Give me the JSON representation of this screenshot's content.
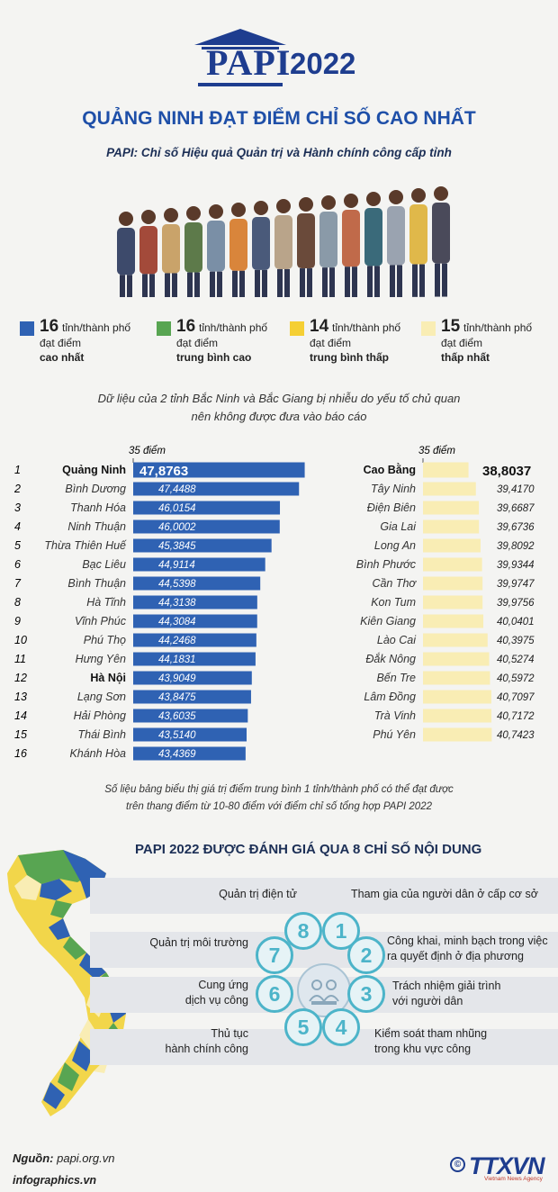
{
  "header": {
    "logo_text": "PAPI",
    "year": "2022",
    "title": "QUẢNG NINH ĐẠT ĐIỂM CHỈ SỐ CAO NHẤT",
    "subtitle": "PAPI: Chỉ số Hiệu quả Quản trị và Hành chính công cấp tỉnh"
  },
  "colors": {
    "brand": "#1e3d8f",
    "high": "#2f62b3",
    "medium_high": "#58a552",
    "medium_low": "#f5cf34",
    "low": "#f9edb4",
    "indicator": "#4cb4c9"
  },
  "legend": [
    {
      "count": "16",
      "unit": "tỉnh/thành phố",
      "line2": "đạt điểm",
      "line3": "cao nhất",
      "color": "#2f62b3"
    },
    {
      "count": "16",
      "unit": "tỉnh/thành phố",
      "line2": "đạt điểm",
      "line3": "trung bình cao",
      "color": "#58a552"
    },
    {
      "count": "14",
      "unit": "tỉnh/thành phố",
      "line2": "đạt điểm",
      "line3": "trung bình thấp",
      "color": "#f5cf34"
    },
    {
      "count": "15",
      "unit": "tỉnh/thành phố",
      "line2": "đạt điểm",
      "line3": "thấp nhất",
      "color": "#f9edb4"
    }
  ],
  "note_top": {
    "line1": "Dữ liệu của 2 tỉnh Bắc Ninh và Bắc Giang bị nhiễu do yếu tố chủ quan",
    "line2": "nên không được đưa vào báo cáo"
  },
  "chart_data": [
    {
      "type": "bar",
      "orientation": "horizontal",
      "axis_label": "35 điểm",
      "xlim_start": 35,
      "color": "#2f62b3",
      "ranks": [
        "1",
        "2",
        "3",
        "4",
        "5",
        "6",
        "7",
        "8",
        "9",
        "10",
        "11",
        "12",
        "13",
        "14",
        "15",
        "16"
      ],
      "categories": [
        "Quảng Ninh",
        "Bình Dương",
        "Thanh Hóa",
        "Ninh Thuận",
        "Thừa Thiên Huế",
        "Bạc Liêu",
        "Bình Thuận",
        "Hà Tĩnh",
        "Vĩnh Phúc",
        "Phú Thọ",
        "Hưng Yên",
        "Hà Nội",
        "Lạng Sơn",
        "Hải Phòng",
        "Thái Bình",
        "Khánh Hòa"
      ],
      "labels": [
        "47,8763",
        "47,4488",
        "46,0154",
        "46,0002",
        "45,3845",
        "44,9114",
        "44,5398",
        "44,3138",
        "44,3084",
        "44,2468",
        "44,1831",
        "43,9049",
        "43,8475",
        "43,6035",
        "43,5140",
        "43,4369"
      ],
      "values": [
        47.8763,
        47.4488,
        46.0154,
        46.0002,
        45.3845,
        44.9114,
        44.5398,
        44.3138,
        44.3084,
        44.2468,
        44.1831,
        43.9049,
        43.8475,
        43.6035,
        43.514,
        43.4369
      ],
      "bold_categories": [
        "Quảng Ninh",
        "Hà Nội"
      ]
    },
    {
      "type": "bar",
      "orientation": "horizontal",
      "axis_label": "35 điểm",
      "xlim_start": 35,
      "color": "#f9edb4",
      "categories": [
        "Cao Bằng",
        "Tây Ninh",
        "Điện Biên",
        "Gia Lai",
        "Long An",
        "Bình Phước",
        "Cần Thơ",
        "Kon Tum",
        "Kiên Giang",
        "Lào Cai",
        "Đắk Nông",
        "Bến Tre",
        "Lâm Đồng",
        "Trà Vinh",
        "Phú Yên"
      ],
      "labels": [
        "38,8037",
        "39,4170",
        "39,6687",
        "39,6736",
        "39,8092",
        "39,9344",
        "39,9747",
        "39,9756",
        "40,0401",
        "40,3975",
        "40,5274",
        "40,5972",
        "40,7097",
        "40,7172",
        "40,7423"
      ],
      "values": [
        38.8037,
        39.417,
        39.6687,
        39.6736,
        39.8092,
        39.9344,
        39.9747,
        39.9756,
        40.0401,
        40.3975,
        40.5274,
        40.5972,
        40.7097,
        40.7172,
        40.7423
      ],
      "bold_categories": [
        "Cao Bằng"
      ]
    }
  ],
  "note_bottom": {
    "line1": "Số liệu bảng biểu thị giá trị điểm trung bình 1 tỉnh/thành phố có thể đạt được",
    "line2": "trên thang điểm từ 10-80 điểm với điểm chỉ số tổng hợp PAPI 2022"
  },
  "indicators": {
    "title": "PAPI 2022 ĐƯỢC ĐÁNH GIÁ QUA 8 CHỈ SỐ NỘI DUNG",
    "items": [
      {
        "num": "1",
        "line1": "Tham gia của người dân ở cấp cơ sở",
        "line2": ""
      },
      {
        "num": "2",
        "line1": "Công khai, minh bạch trong việc",
        "line2": "ra quyết định ở địa phương"
      },
      {
        "num": "3",
        "line1": "Trách nhiệm giải trình",
        "line2": "với người dân"
      },
      {
        "num": "4",
        "line1": "Kiểm soát tham nhũng",
        "line2": "trong khu vực công"
      },
      {
        "num": "5",
        "line1": "Thủ tục",
        "line2": "hành chính công"
      },
      {
        "num": "6",
        "line1": "Cung ứng",
        "line2": "dịch vụ công"
      },
      {
        "num": "7",
        "line1": "Quản trị môi trường",
        "line2": ""
      },
      {
        "num": "8",
        "line1": "Quản trị điện tử",
        "line2": ""
      }
    ]
  },
  "footer": {
    "source_label": "Nguồn:",
    "source_value": "papi.org.vn",
    "site": "infographics.vn",
    "copyright": "©",
    "agency": "TTXVN",
    "agency_sub": "Vietnam News Agency"
  }
}
